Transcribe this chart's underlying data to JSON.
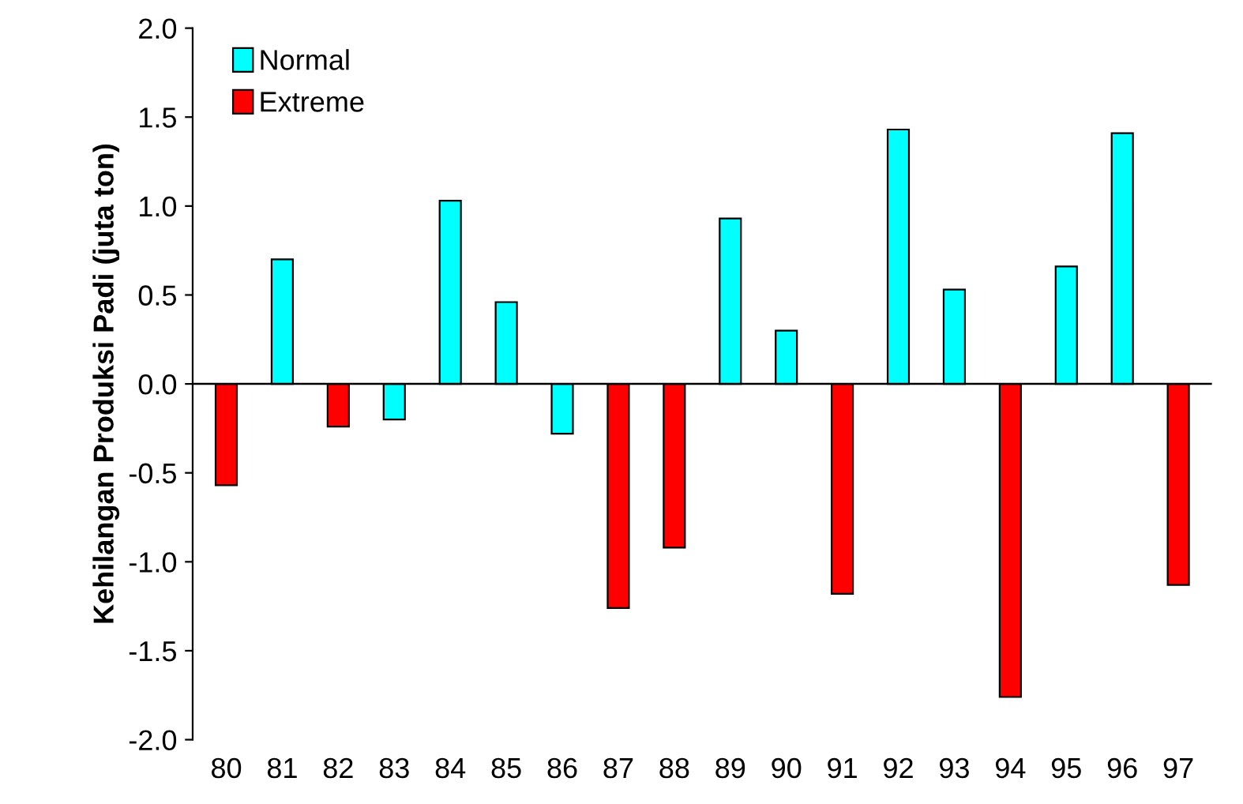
{
  "chart_data": {
    "type": "bar",
    "ylabel": "Kehilangan Produksi Padi (juta ton)",
    "categories": [
      "80",
      "81",
      "82",
      "83",
      "84",
      "85",
      "86",
      "87",
      "88",
      "89",
      "90",
      "91",
      "92",
      "93",
      "94",
      "95",
      "96",
      "97"
    ],
    "series": [
      {
        "name": "Normal",
        "color": "#00ffff",
        "values": [
          null,
          0.7,
          null,
          -0.2,
          1.03,
          0.46,
          -0.28,
          null,
          null,
          0.93,
          0.3,
          null,
          1.43,
          0.53,
          null,
          0.66,
          1.41,
          null
        ]
      },
      {
        "name": "Extreme",
        "color": "#ff0000",
        "values": [
          -0.57,
          null,
          -0.24,
          null,
          null,
          null,
          null,
          -1.26,
          -0.92,
          null,
          null,
          -1.18,
          null,
          null,
          -1.76,
          null,
          null,
          -1.13
        ]
      }
    ],
    "ylim": [
      -2.0,
      2.0
    ],
    "yticks": [
      {
        "value": -2.0,
        "label": "-2.0"
      },
      {
        "value": -1.5,
        "label": "-1.5"
      },
      {
        "value": -1.0,
        "label": "-1.0"
      },
      {
        "value": -0.5,
        "label": "-0.5"
      },
      {
        "value": 0.0,
        "label": "0.0"
      },
      {
        "value": 0.5,
        "label": "0.5"
      },
      {
        "value": 1.0,
        "label": "1.0"
      },
      {
        "value": 1.5,
        "label": "1.5"
      },
      {
        "value": 2.0,
        "label": "2.0"
      }
    ],
    "ref_lines": [
      {
        "axis": "y",
        "value": 0.0,
        "color": "#000000",
        "line_style": "solid"
      }
    ],
    "legend": "top left"
  }
}
